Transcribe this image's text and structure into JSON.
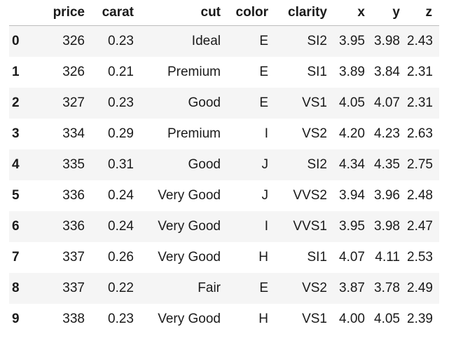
{
  "table": {
    "columns": [
      "price",
      "carat",
      "cut",
      "color",
      "clarity",
      "x",
      "y",
      "z"
    ],
    "rows": [
      {
        "index": "0",
        "price": "326",
        "carat": "0.23",
        "cut": "Ideal",
        "color": "E",
        "clarity": "SI2",
        "x": "3.95",
        "y": "3.98",
        "z": "2.43"
      },
      {
        "index": "1",
        "price": "326",
        "carat": "0.21",
        "cut": "Premium",
        "color": "E",
        "clarity": "SI1",
        "x": "3.89",
        "y": "3.84",
        "z": "2.31"
      },
      {
        "index": "2",
        "price": "327",
        "carat": "0.23",
        "cut": "Good",
        "color": "E",
        "clarity": "VS1",
        "x": "4.05",
        "y": "4.07",
        "z": "2.31"
      },
      {
        "index": "3",
        "price": "334",
        "carat": "0.29",
        "cut": "Premium",
        "color": "I",
        "clarity": "VS2",
        "x": "4.20",
        "y": "4.23",
        "z": "2.63"
      },
      {
        "index": "4",
        "price": "335",
        "carat": "0.31",
        "cut": "Good",
        "color": "J",
        "clarity": "SI2",
        "x": "4.34",
        "y": "4.35",
        "z": "2.75"
      },
      {
        "index": "5",
        "price": "336",
        "carat": "0.24",
        "cut": "Very Good",
        "color": "J",
        "clarity": "VVS2",
        "x": "3.94",
        "y": "3.96",
        "z": "2.48"
      },
      {
        "index": "6",
        "price": "336",
        "carat": "0.24",
        "cut": "Very Good",
        "color": "I",
        "clarity": "VVS1",
        "x": "3.95",
        "y": "3.98",
        "z": "2.47"
      },
      {
        "index": "7",
        "price": "337",
        "carat": "0.26",
        "cut": "Very Good",
        "color": "H",
        "clarity": "SI1",
        "x": "4.07",
        "y": "4.11",
        "z": "2.53"
      },
      {
        "index": "8",
        "price": "337",
        "carat": "0.22",
        "cut": "Fair",
        "color": "E",
        "clarity": "VS2",
        "x": "3.87",
        "y": "3.78",
        "z": "2.49"
      },
      {
        "index": "9",
        "price": "338",
        "carat": "0.23",
        "cut": "Very Good",
        "color": "H",
        "clarity": "VS1",
        "x": "4.00",
        "y": "4.05",
        "z": "2.39"
      }
    ]
  }
}
